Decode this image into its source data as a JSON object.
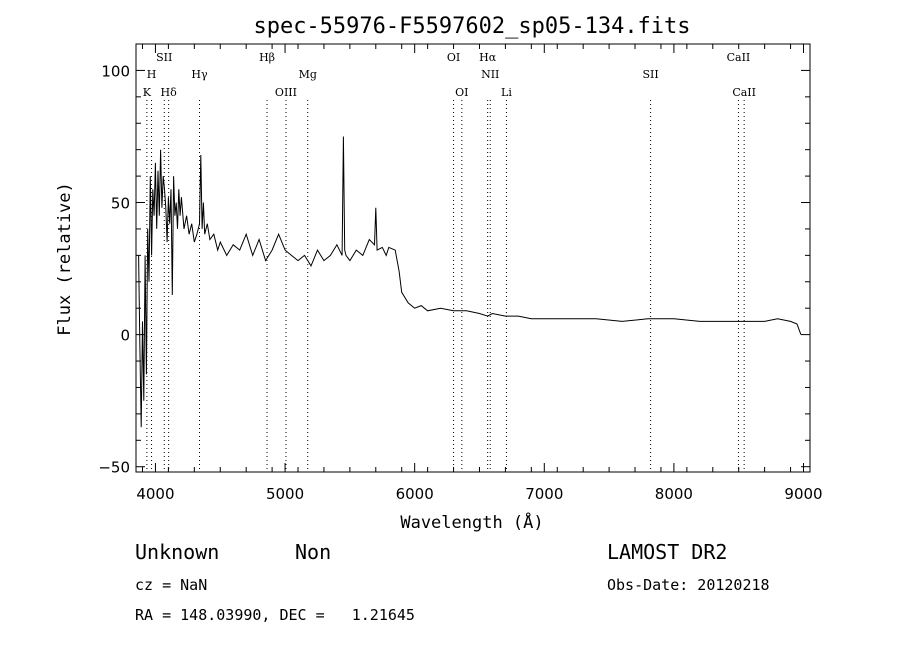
{
  "chart_data": {
    "type": "line",
    "title": "spec-55976-F5597602_sp05-134.fits",
    "xlabel": "Wavelength (Å)",
    "ylabel": "Flux (relative)",
    "xlim": [
      3850,
      9050
    ],
    "ylim": [
      -52,
      110
    ],
    "xticks": [
      "4000",
      "5000",
      "6000",
      "7000",
      "8000",
      "9000"
    ],
    "yticks": [
      "−50",
      "0",
      "50",
      "100"
    ],
    "grid": false,
    "series": [
      {
        "x": [
          3870,
          3880,
          3890,
          3900,
          3910,
          3920,
          3930,
          3940,
          3950,
          3960,
          3970,
          3980,
          3990,
          4000,
          4010,
          4020,
          4030,
          4040,
          4050,
          4060,
          4070,
          4080,
          4090,
          4100,
          4110,
          4120,
          4130,
          4140,
          4150,
          4160,
          4170,
          4180,
          4190,
          4200,
          4220,
          4240,
          4260,
          4280,
          4300,
          4320,
          4340,
          4350,
          4360,
          4370,
          4380,
          4400,
          4420,
          4450,
          4480,
          4500,
          4550,
          4600,
          4650,
          4700,
          4750,
          4800,
          4850,
          4900,
          4950,
          5000,
          5050,
          5100,
          5150,
          5200,
          5250,
          5300,
          5350,
          5400,
          5440,
          5450,
          5460,
          5470,
          5500,
          5550,
          5600,
          5650,
          5690,
          5700,
          5710,
          5750,
          5780,
          5800,
          5850,
          5880,
          5900,
          5950,
          6000,
          6050,
          6100,
          6200,
          6300,
          6400,
          6500,
          6563,
          6600,
          6700,
          6800,
          6900,
          7000,
          7200,
          7400,
          7600,
          7800,
          8000,
          8200,
          8400,
          8600,
          8700,
          8800,
          8900,
          8950,
          8980
        ],
        "y": [
          30,
          -5,
          -35,
          5,
          -25,
          30,
          -15,
          40,
          20,
          60,
          30,
          55,
          45,
          65,
          40,
          62,
          45,
          70,
          48,
          60,
          55,
          48,
          35,
          52,
          42,
          55,
          15,
          60,
          45,
          50,
          40,
          55,
          45,
          52,
          40,
          45,
          38,
          42,
          35,
          38,
          42,
          68,
          40,
          50,
          38,
          42,
          36,
          38,
          32,
          35,
          30,
          34,
          32,
          38,
          30,
          36,
          28,
          32,
          38,
          32,
          30,
          28,
          30,
          26,
          32,
          28,
          30,
          34,
          30,
          75,
          32,
          30,
          28,
          32,
          30,
          36,
          34,
          48,
          32,
          33,
          30,
          33,
          32,
          24,
          16,
          12,
          10,
          11,
          9,
          10,
          9,
          9,
          8,
          7,
          8,
          7,
          7,
          6,
          6,
          6,
          6,
          5,
          6,
          6,
          5,
          5,
          5,
          5,
          6,
          5,
          4,
          0
        ]
      }
    ],
    "spectral_lines": [
      {
        "label": "SII",
        "x": 4068
      },
      {
        "label": "H",
        "x": 3970
      },
      {
        "label": "K",
        "x": 3934
      },
      {
        "label": "Hδ",
        "x": 4102
      },
      {
        "label": "Hγ",
        "x": 4340
      },
      {
        "label": "Hβ",
        "x": 4861
      },
      {
        "label": "OIII",
        "x": 5007
      },
      {
        "label": "Mg",
        "x": 5175
      },
      {
        "label": "OI",
        "x": 6300
      },
      {
        "label": "OI",
        "x": 6364
      },
      {
        "label": "Hα",
        "x": 6563
      },
      {
        "label": "NII",
        "x": 6583
      },
      {
        "label": "Li",
        "x": 6708
      },
      {
        "label": "SII",
        "x": 7820
      },
      {
        "label": "CaII",
        "x": 8498
      },
      {
        "label": "CaII",
        "x": 8542
      }
    ]
  },
  "info": {
    "class": "Unknown",
    "subclass": "Non",
    "survey": "LAMOST DR2",
    "cz": "cz = NaN",
    "obs_date": "Obs-Date: 20120218",
    "radec": "RA = 148.03990, DEC =   1.21645"
  }
}
